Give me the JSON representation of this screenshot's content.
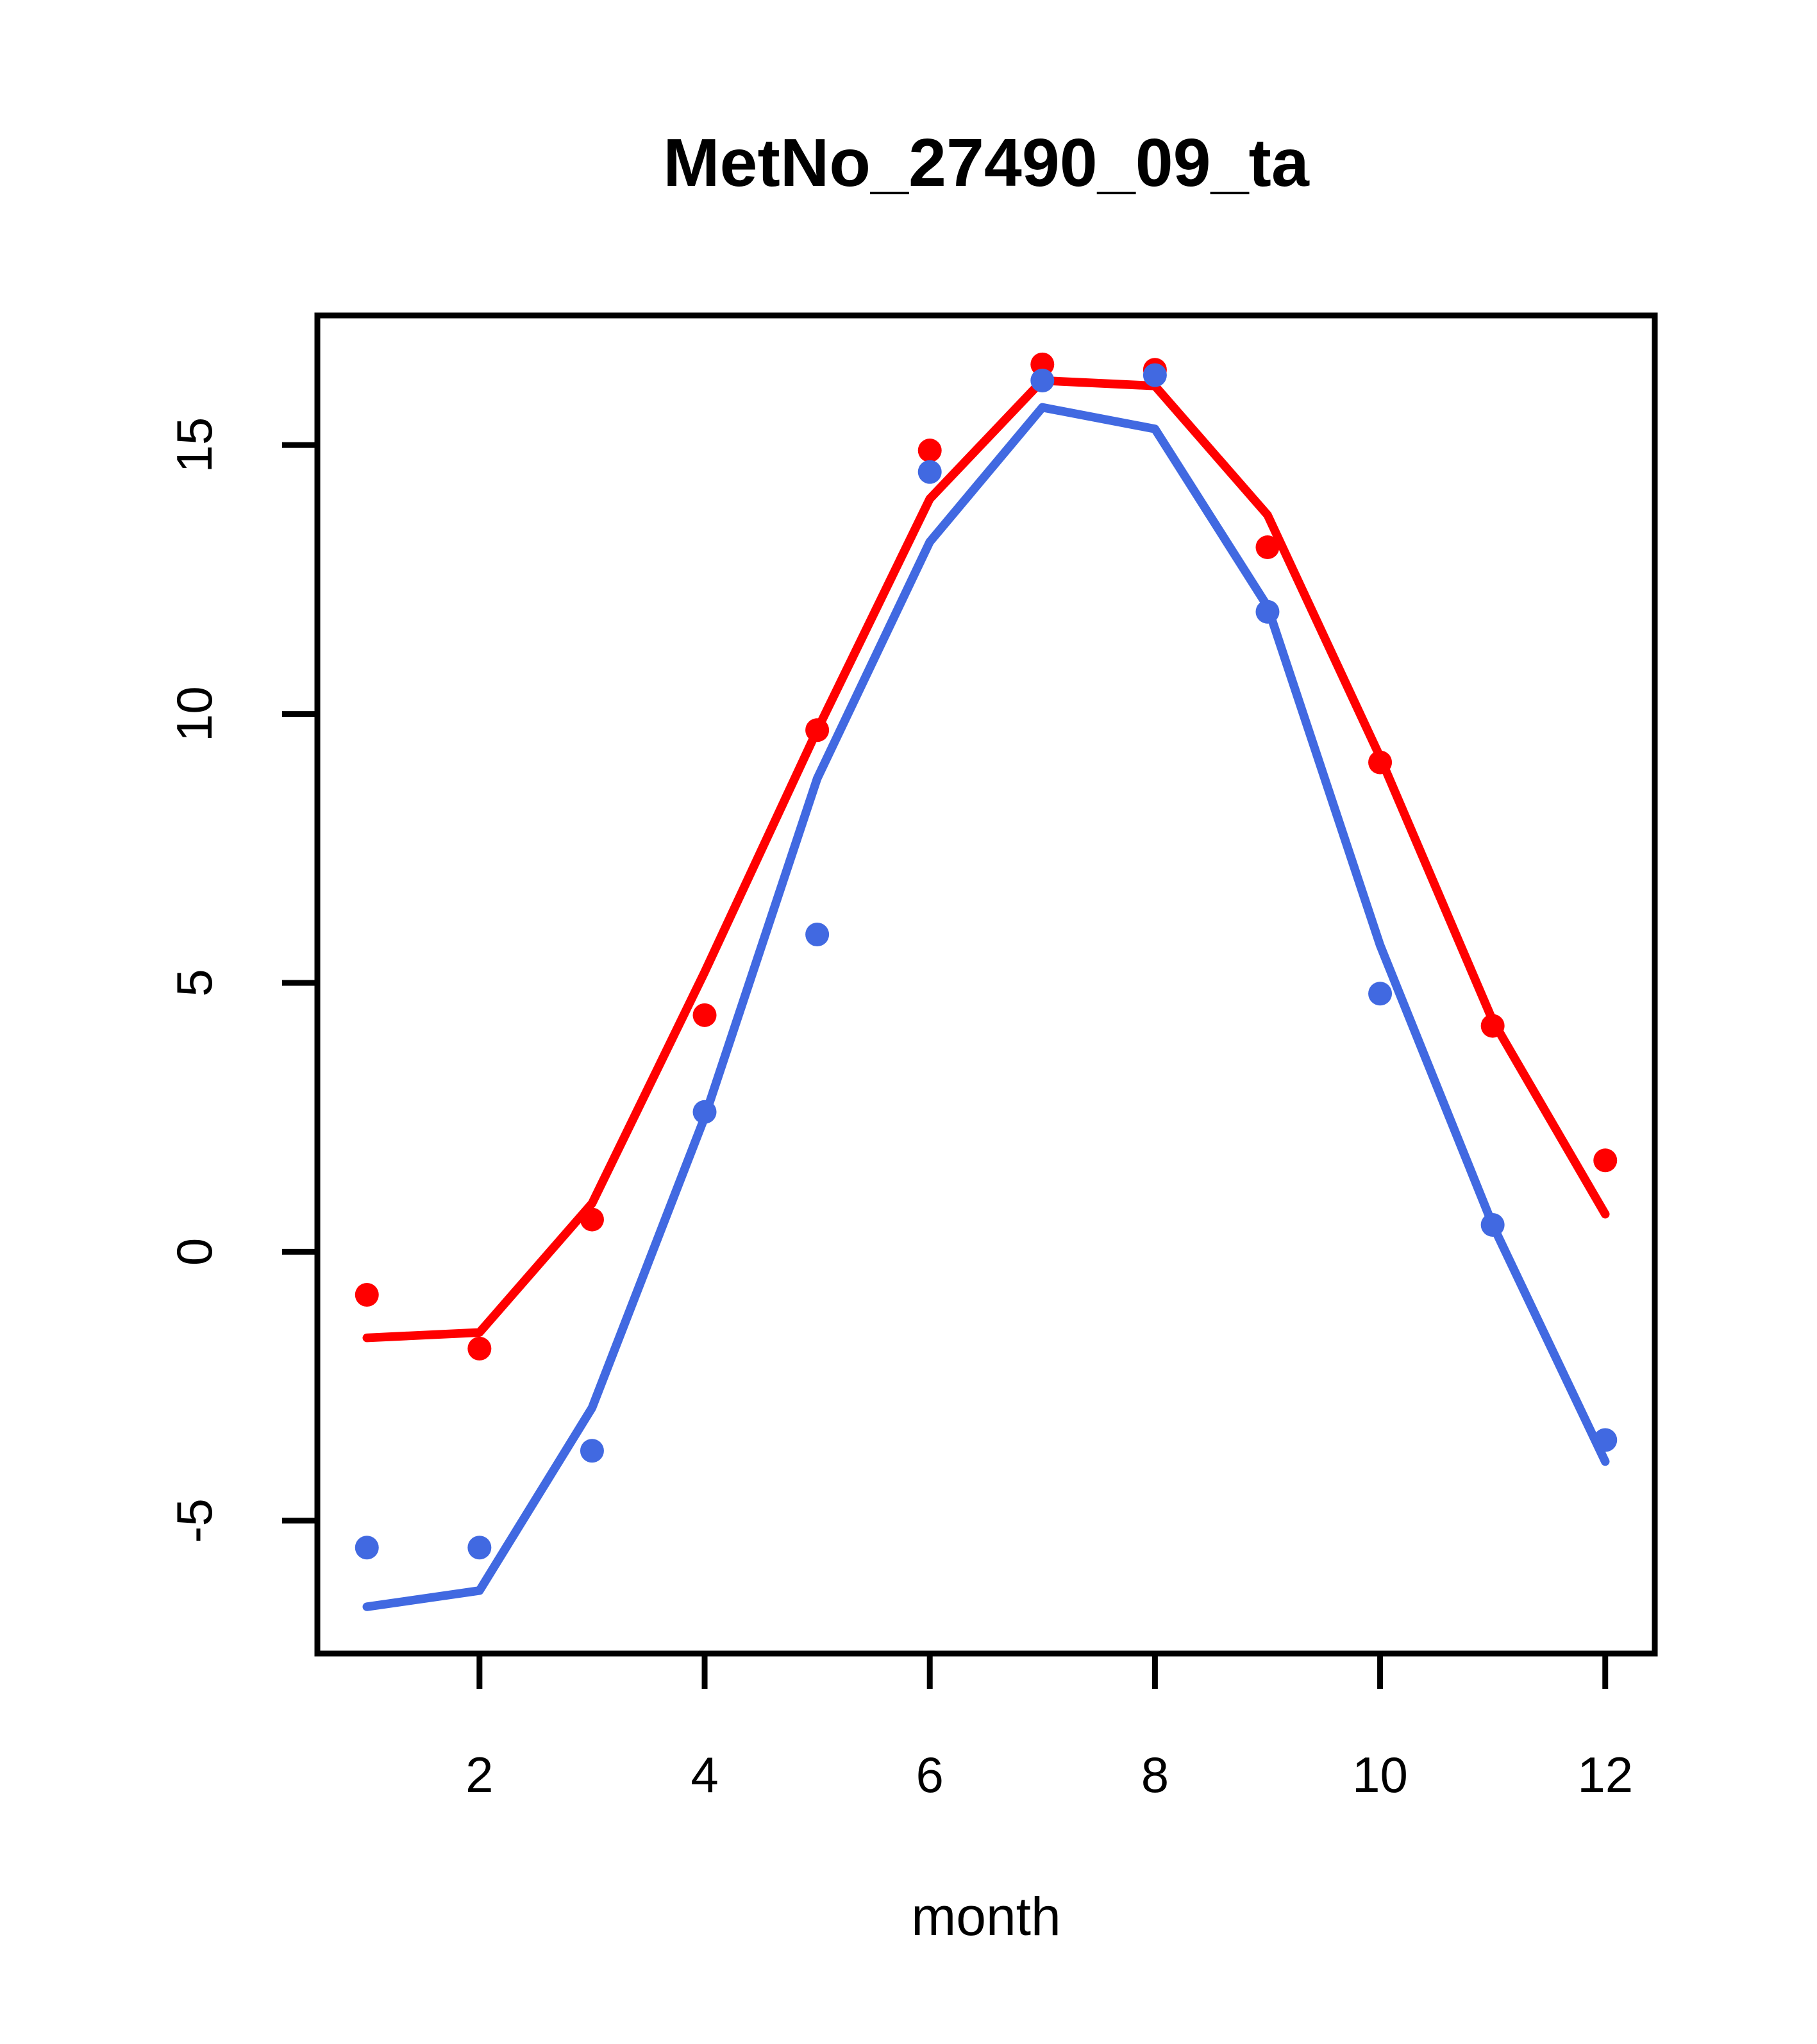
{
  "title": "MetNo_27490_09_ta",
  "x_axis_label": "month",
  "chart_data": {
    "type": "line",
    "title": "MetNo_27490_09_ta",
    "xlabel": "month",
    "ylabel": "",
    "x": [
      1,
      2,
      3,
      4,
      5,
      6,
      7,
      8,
      9,
      10,
      11,
      12
    ],
    "xticks": [
      2,
      4,
      6,
      8,
      10,
      12
    ],
    "yticks": [
      -5,
      0,
      5,
      10,
      15
    ],
    "xlim": [
      0.56,
      12.44
    ],
    "ylim": [
      -7.47,
      17.41
    ],
    "grid": false,
    "legend": "none",
    "colors": {
      "red": "#ff0000",
      "blue": "#4169e1",
      "axis": "#000000"
    },
    "series": [
      {
        "name": "red-line",
        "kind": "line",
        "color": "#ff0000",
        "values": [
          -1.6,
          -1.5,
          0.9,
          5.2,
          9.7,
          14.0,
          16.2,
          16.1,
          13.7,
          9.2,
          4.3,
          0.7
        ]
      },
      {
        "name": "red-points",
        "kind": "scatter",
        "color": "#ff0000",
        "values": [
          -0.8,
          -1.8,
          0.6,
          4.4,
          9.7,
          14.9,
          16.5,
          16.4,
          13.1,
          9.1,
          4.2,
          1.7
        ]
      },
      {
        "name": "blue-line",
        "kind": "line",
        "color": "#4169e1",
        "values": [
          -6.6,
          -6.3,
          -2.9,
          2.5,
          8.8,
          13.2,
          15.7,
          15.3,
          12.0,
          5.7,
          0.5,
          -3.9
        ]
      },
      {
        "name": "blue-points",
        "kind": "scatter",
        "color": "#4169e1",
        "values": [
          -5.5,
          -5.5,
          -3.7,
          2.6,
          5.9,
          14.5,
          16.2,
          16.3,
          11.9,
          4.8,
          0.5,
          -3.5
        ]
      }
    ]
  }
}
